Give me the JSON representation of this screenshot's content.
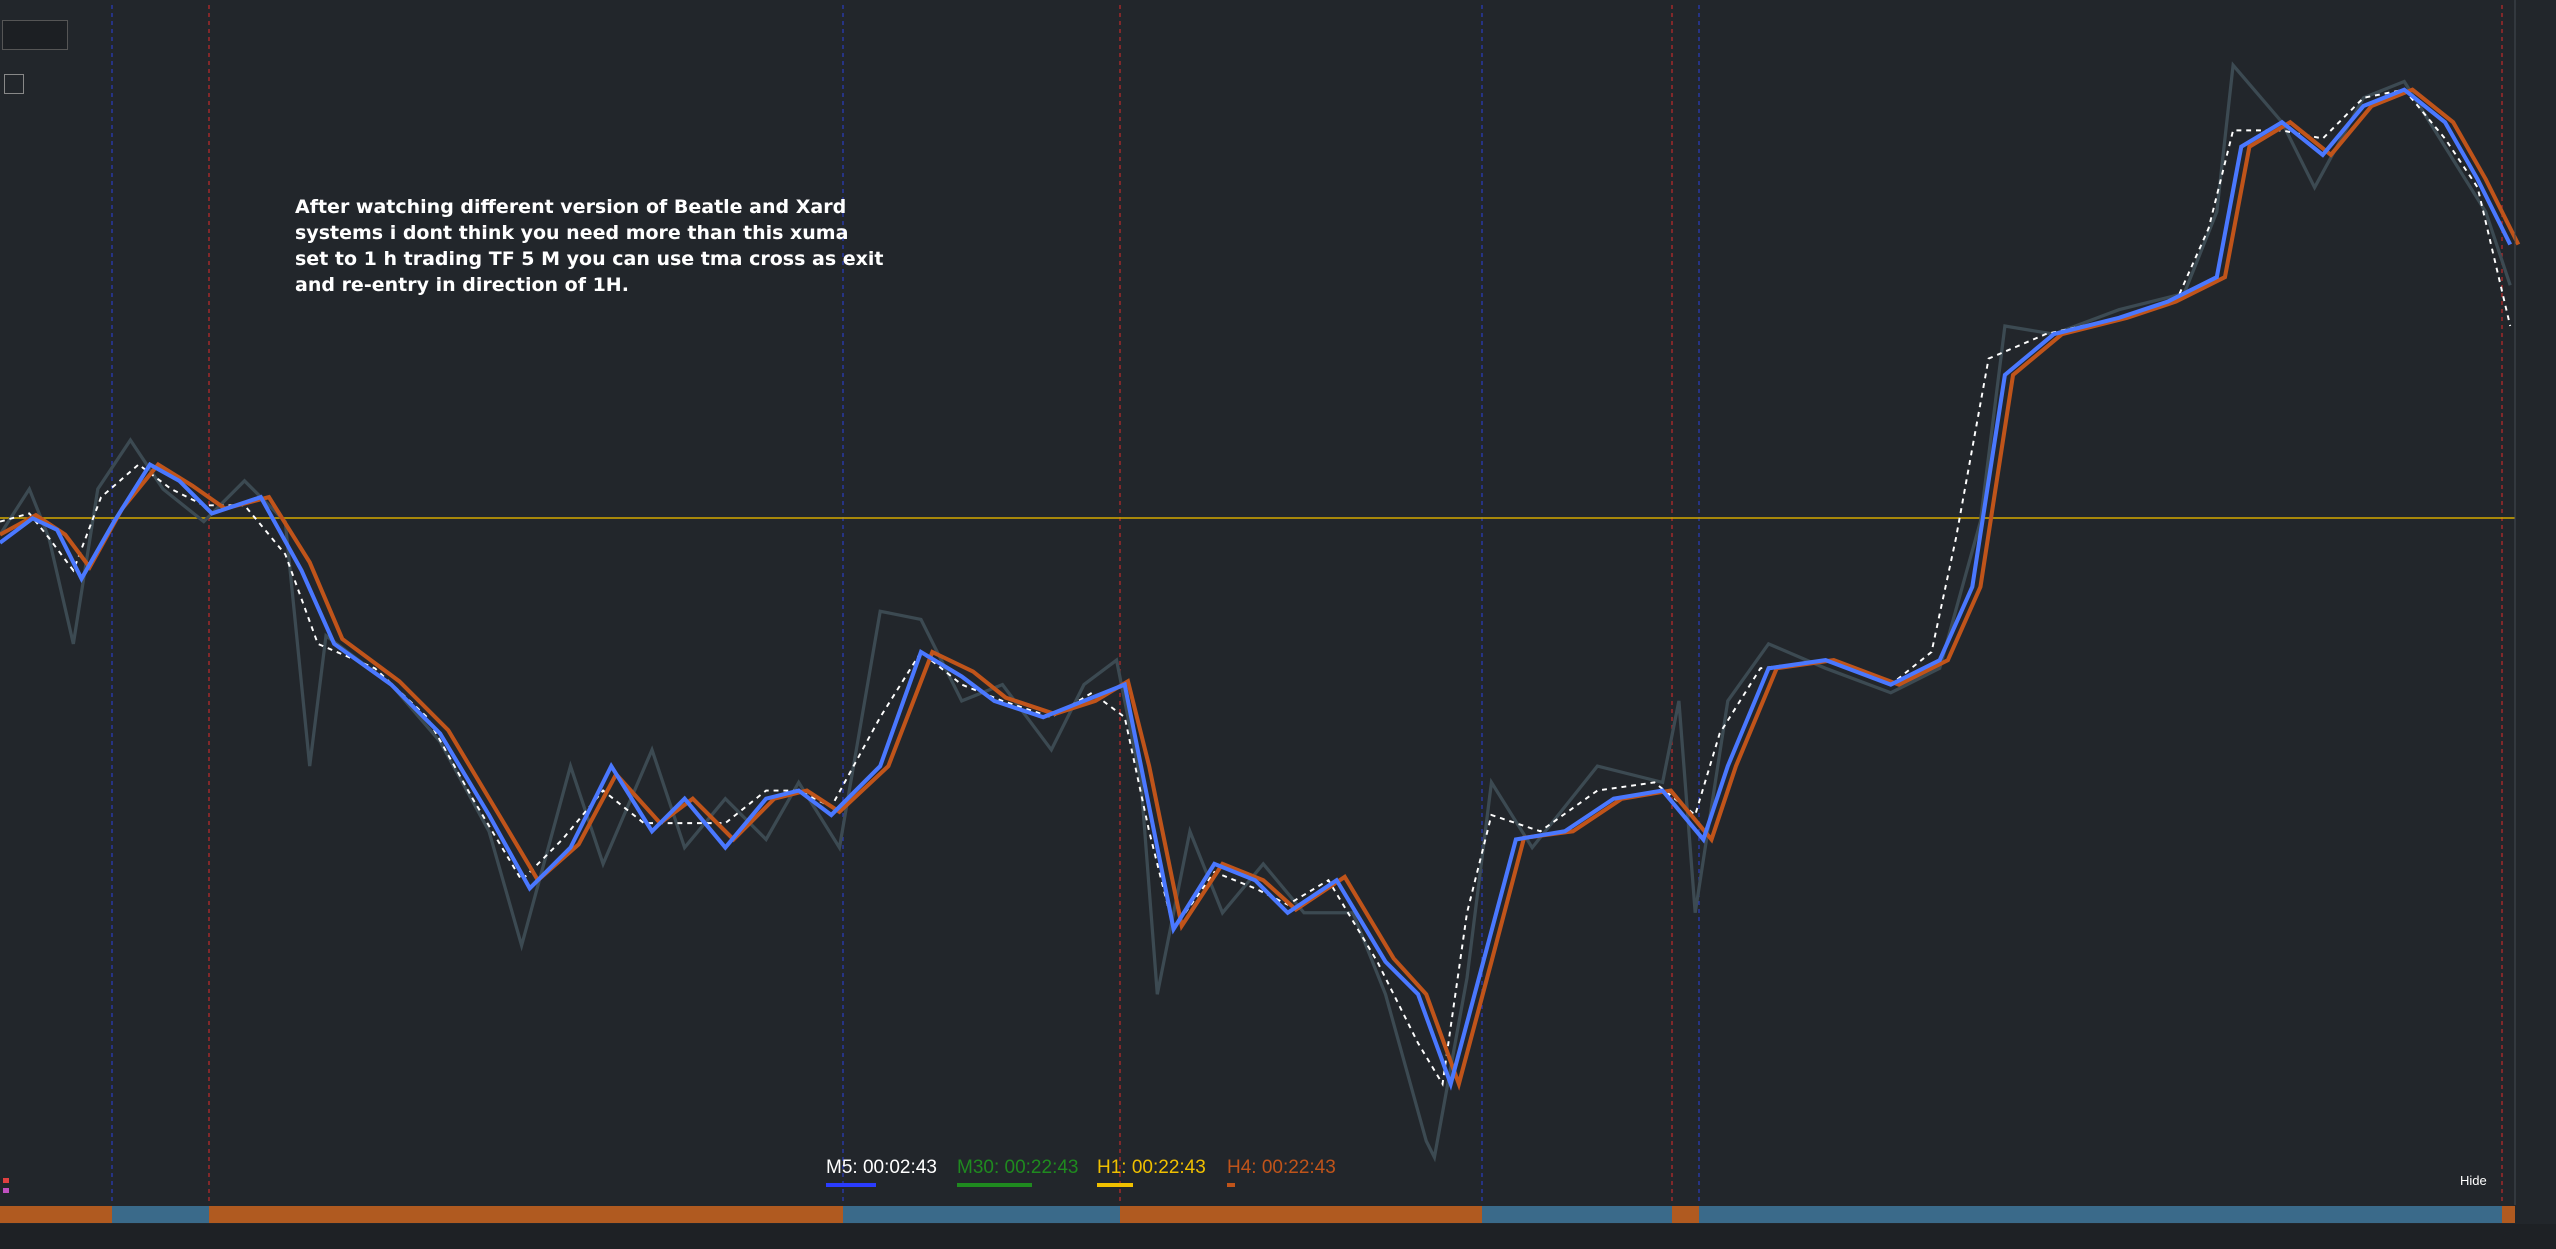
{
  "annotation": {
    "lines": [
      "After watching different version of Beatle and Xard",
      "systems i dont think you need more than this xuma",
      "set to 1 h trading TF 5 M you can use tma cross as exit",
      "and re-entry in direction of 1H."
    ]
  },
  "timers": [
    {
      "label": "M5: 00:02:43",
      "color": "#ffffff",
      "bar": "#2a3cff"
    },
    {
      "label": "M30: 00:22:43",
      "color": "#1f8a1f",
      "bar": "#1f8a1f"
    },
    {
      "label": "H1: 00:22:43",
      "color": "#f0c000",
      "bar": "#f0c000"
    },
    {
      "label": "H4: 00:22:43",
      "color": "#c0541a",
      "bar": "#c0541a"
    }
  ],
  "hide_button": "Hide"
}
